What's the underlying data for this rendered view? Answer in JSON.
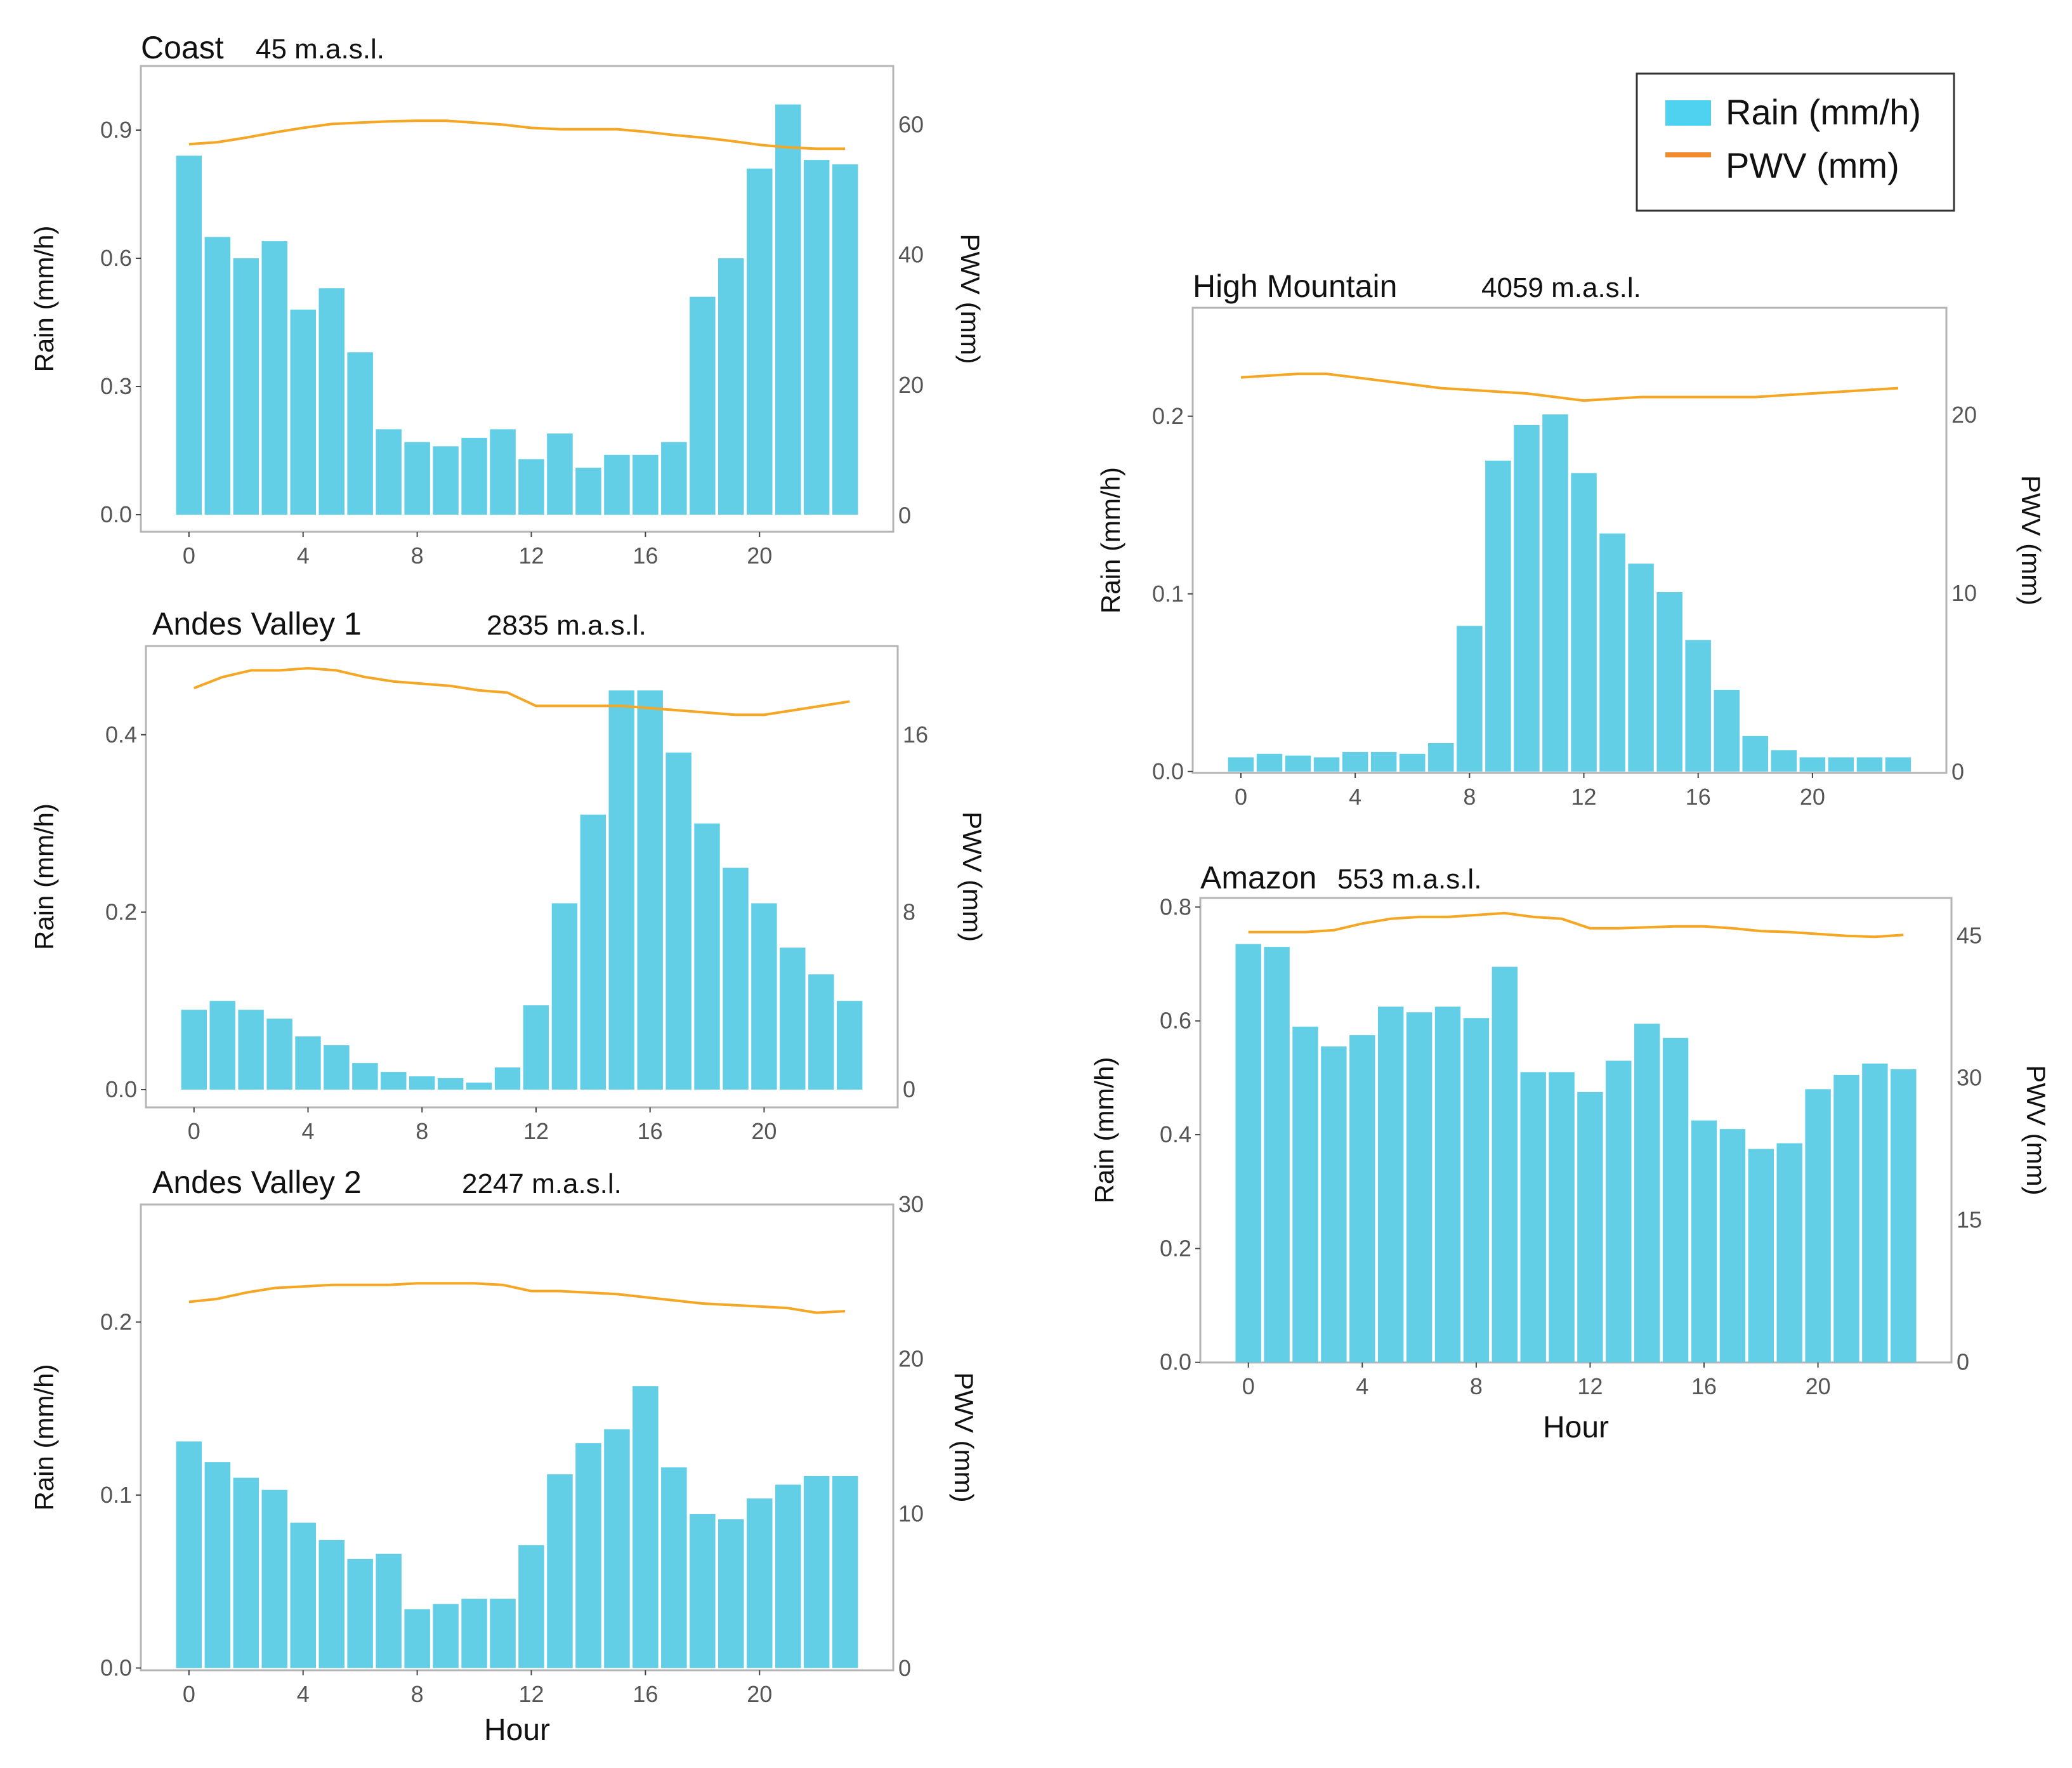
{
  "colors": {
    "rain": "#62CFE7",
    "pwv": "#F5A623",
    "legend_rain": "#4FD1F0",
    "legend_pwv": "#F28A2E",
    "frame": "#B5B5B5"
  },
  "legend": {
    "rain": "Rain (mm/h)",
    "pwv": "PWV (mm)"
  },
  "labels": {
    "hour": "Hour"
  },
  "chart_data": [
    {
      "id": "coast",
      "type": "bar",
      "title": "Coast",
      "elevation": "45 m.a.s.l.",
      "xlabel": "",
      "ylabel": "Rain (mm/h)",
      "y2label": "PWV (mm)",
      "xticks": [
        0,
        4,
        8,
        12,
        16,
        20
      ],
      "x": [
        0,
        1,
        2,
        3,
        4,
        5,
        6,
        7,
        8,
        9,
        10,
        11,
        12,
        13,
        14,
        15,
        16,
        17,
        18,
        19,
        20,
        21,
        22,
        23
      ],
      "ylim": [
        -0.04,
        1.05
      ],
      "yticks": [
        0.0,
        0.3,
        0.6,
        0.9
      ],
      "yticklabels": [
        "0.0",
        "0.3",
        "0.6",
        "0.9"
      ],
      "y2lim": [
        -2.5,
        69
      ],
      "y2ticks": [
        0,
        20,
        40,
        60
      ],
      "y2ticklabels": [
        "0",
        "20",
        "40",
        "60"
      ],
      "series": [
        {
          "name": "Rain (mm/h)",
          "type": "bar",
          "values": [
            0.84,
            0.65,
            0.6,
            0.64,
            0.48,
            0.53,
            0.38,
            0.2,
            0.17,
            0.16,
            0.18,
            0.2,
            0.13,
            0.19,
            0.11,
            0.14,
            0.14,
            0.17,
            0.51,
            0.6,
            0.81,
            0.96,
            0.83,
            0.82
          ]
        },
        {
          "name": "PWV (mm)",
          "type": "line",
          "values": [
            57,
            57.3,
            58,
            58.8,
            59.5,
            60.1,
            60.3,
            60.5,
            60.6,
            60.6,
            60.3,
            60,
            59.5,
            59.3,
            59.3,
            59.3,
            58.9,
            58.4,
            58,
            57.5,
            56.9,
            56.5,
            56.3,
            56.3
          ]
        }
      ]
    },
    {
      "id": "andes1",
      "type": "bar",
      "title": "Andes Valley 1",
      "elevation": "2835 m.a.s.l.",
      "xlabel": "",
      "ylabel": "Rain (mm/h)",
      "y2label": "PWV (mm)",
      "xticks": [
        0,
        4,
        8,
        12,
        16,
        20
      ],
      "x": [
        0,
        1,
        2,
        3,
        4,
        5,
        6,
        7,
        8,
        9,
        10,
        11,
        12,
        13,
        14,
        15,
        16,
        17,
        18,
        19,
        20,
        21,
        22,
        23
      ],
      "ylim": [
        -0.02,
        0.5
      ],
      "yticks": [
        0.0,
        0.2,
        0.4
      ],
      "yticklabels": [
        "0.0",
        "0.2",
        "0.4"
      ],
      "y2lim": [
        -0.8,
        20
      ],
      "y2ticks": [
        0,
        8,
        16
      ],
      "y2ticklabels": [
        "0",
        "8",
        "16"
      ],
      "series": [
        {
          "name": "Rain (mm/h)",
          "type": "bar",
          "values": [
            0.09,
            0.1,
            0.09,
            0.08,
            0.06,
            0.05,
            0.03,
            0.02,
            0.015,
            0.013,
            0.008,
            0.025,
            0.095,
            0.21,
            0.31,
            0.45,
            0.45,
            0.38,
            0.3,
            0.25,
            0.21,
            0.16,
            0.13,
            0.1
          ]
        },
        {
          "name": "PWV (mm)",
          "type": "line",
          "values": [
            18.1,
            18.6,
            18.9,
            18.9,
            19.0,
            18.9,
            18.6,
            18.4,
            18.3,
            18.2,
            18.0,
            17.9,
            17.3,
            17.3,
            17.3,
            17.3,
            17.2,
            17.1,
            17.0,
            16.9,
            16.9,
            17.1,
            17.3,
            17.5
          ]
        }
      ]
    },
    {
      "id": "andes2",
      "type": "bar",
      "title": "Andes Valley 2",
      "elevation": "2247 m.a.s.l.",
      "xlabel": "Hour",
      "ylabel": "Rain (mm/h)",
      "y2label": "PWV (mm)",
      "xticks": [
        0,
        4,
        8,
        12,
        16,
        20
      ],
      "x": [
        0,
        1,
        2,
        3,
        4,
        5,
        6,
        7,
        8,
        9,
        10,
        11,
        12,
        13,
        14,
        15,
        16,
        17,
        18,
        19,
        20,
        21,
        22,
        23
      ],
      "ylim": [
        -0.0013,
        0.268
      ],
      "yticks": [
        0.0,
        0.1,
        0.2
      ],
      "yticklabels": [
        "0.0",
        "0.1",
        "0.2"
      ],
      "y2lim": [
        -0.12,
        30
      ],
      "y2ticks": [
        0,
        10,
        20,
        30
      ],
      "y2ticklabels": [
        "0",
        "10",
        "20",
        "30"
      ],
      "series": [
        {
          "name": "Rain (mm/h)",
          "type": "bar",
          "values": [
            0.131,
            0.119,
            0.11,
            0.103,
            0.084,
            0.074,
            0.063,
            0.066,
            0.034,
            0.037,
            0.04,
            0.04,
            0.071,
            0.112,
            0.13,
            0.138,
            0.163,
            0.116,
            0.089,
            0.086,
            0.098,
            0.106,
            0.111,
            0.111
          ]
        },
        {
          "name": "PWV (mm)",
          "type": "line",
          "values": [
            23.7,
            23.9,
            24.3,
            24.6,
            24.7,
            24.8,
            24.8,
            24.8,
            24.9,
            24.9,
            24.9,
            24.8,
            24.4,
            24.4,
            24.3,
            24.2,
            24.0,
            23.8,
            23.6,
            23.5,
            23.4,
            23.3,
            23.0,
            23.1
          ]
        }
      ]
    },
    {
      "id": "highmountain",
      "type": "bar",
      "title": "High Mountain",
      "elevation": "4059 m.a.s.l.",
      "xlabel": "",
      "ylabel": "Rain (mm/h)",
      "y2label": "PWV (mm)",
      "xticks": [
        0,
        4,
        8,
        12,
        16,
        20
      ],
      "x": [
        0,
        1,
        2,
        3,
        4,
        5,
        6,
        7,
        8,
        9,
        10,
        11,
        12,
        13,
        14,
        15,
        16,
        17,
        18,
        19,
        20,
        21,
        22,
        23
      ],
      "ylim": [
        -0.0008,
        0.261
      ],
      "yticks": [
        0.0,
        0.1,
        0.2
      ],
      "yticklabels": [
        "0.0",
        "0.1",
        "0.2"
      ],
      "y2lim": [
        -0.06,
        26
      ],
      "y2ticks": [
        0,
        10,
        20
      ],
      "y2ticklabels": [
        "0",
        "10",
        "20"
      ],
      "series": [
        {
          "name": "Rain (mm/h)",
          "type": "bar",
          "values": [
            0.008,
            0.01,
            0.009,
            0.008,
            0.011,
            0.011,
            0.01,
            0.016,
            0.082,
            0.175,
            0.195,
            0.201,
            0.168,
            0.134,
            0.117,
            0.101,
            0.074,
            0.046,
            0.02,
            0.012,
            0.008,
            0.008,
            0.008,
            0.008
          ]
        },
        {
          "name": "PWV (mm)",
          "type": "line",
          "values": [
            22.1,
            22.2,
            22.3,
            22.3,
            22.1,
            21.9,
            21.7,
            21.5,
            21.4,
            21.3,
            21.2,
            21.0,
            20.8,
            20.9,
            21.0,
            21.0,
            21.0,
            21.0,
            21.0,
            21.1,
            21.2,
            21.3,
            21.4,
            21.5
          ]
        }
      ]
    },
    {
      "id": "amazon",
      "type": "bar",
      "title": "Amazon",
      "elevation": "553 m.a.s.l.",
      "xlabel": "Hour",
      "ylabel": "Rain (mm/h)",
      "y2label": "PWV (mm)",
      "xticks": [
        0,
        4,
        8,
        12,
        16,
        20
      ],
      "x": [
        0,
        1,
        2,
        3,
        4,
        5,
        6,
        7,
        8,
        9,
        10,
        11,
        12,
        13,
        14,
        15,
        16,
        17,
        18,
        19,
        20,
        21,
        22,
        23
      ],
      "ylim": [
        -0.0003,
        0.816
      ],
      "yticks": [
        0.0,
        0.2,
        0.4,
        0.6,
        0.8
      ],
      "yticklabels": [
        "0.0",
        "0.2",
        "0.4",
        "0.6",
        "0.8"
      ],
      "y2lim": [
        -0.04,
        49
      ],
      "y2ticks": [
        0,
        15,
        30,
        45
      ],
      "y2ticklabels": [
        "0",
        "15",
        "30",
        "45"
      ],
      "series": [
        {
          "name": "Rain (mm/h)",
          "type": "bar",
          "values": [
            0.735,
            0.73,
            0.59,
            0.555,
            0.575,
            0.625,
            0.615,
            0.625,
            0.605,
            0.695,
            0.51,
            0.51,
            0.475,
            0.53,
            0.595,
            0.57,
            0.425,
            0.41,
            0.375,
            0.385,
            0.48,
            0.505,
            0.525,
            0.515
          ]
        },
        {
          "name": "PWV (mm)",
          "type": "line",
          "values": [
            45.4,
            45.4,
            45.4,
            45.6,
            46.3,
            46.8,
            47.0,
            47.0,
            47.2,
            47.4,
            47.0,
            46.8,
            45.8,
            45.8,
            45.9,
            46.0,
            46.0,
            45.8,
            45.5,
            45.4,
            45.2,
            45.0,
            44.9,
            45.1
          ]
        }
      ]
    }
  ]
}
